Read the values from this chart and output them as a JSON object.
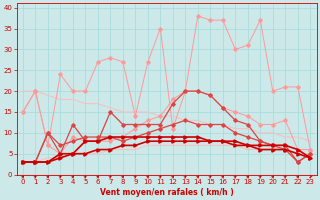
{
  "x": [
    0,
    1,
    2,
    3,
    4,
    5,
    6,
    7,
    8,
    9,
    10,
    11,
    12,
    13,
    14,
    15,
    16,
    17,
    18,
    19,
    20,
    21,
    22,
    23
  ],
  "line_dark1": [
    3,
    3,
    3,
    5,
    5,
    8,
    8,
    9,
    9,
    9,
    9,
    9,
    9,
    9,
    9,
    8,
    8,
    8,
    7,
    7,
    7,
    7,
    6,
    4
  ],
  "line_dark2": [
    3,
    3,
    3,
    4,
    5,
    5,
    6,
    6,
    7,
    7,
    8,
    8,
    8,
    8,
    8,
    8,
    8,
    7,
    7,
    6,
    6,
    6,
    5,
    4
  ],
  "line_med1": [
    3,
    3,
    10,
    5,
    12,
    8,
    8,
    15,
    12,
    12,
    12,
    12,
    17,
    20,
    20,
    19,
    16,
    13,
    12,
    8,
    7,
    6,
    3,
    5
  ],
  "line_med2": [
    3,
    3,
    10,
    7,
    8,
    9,
    9,
    9,
    8,
    9,
    10,
    11,
    12,
    13,
    12,
    12,
    12,
    10,
    9,
    8,
    7,
    7,
    3,
    5
  ],
  "line_light1": [
    15,
    20,
    7,
    24,
    20,
    20,
    27,
    28,
    27,
    14,
    27,
    35,
    11,
    20,
    38,
    37,
    37,
    30,
    31,
    37,
    20,
    21,
    21,
    6
  ],
  "line_light2": [
    15,
    20,
    7,
    5,
    9,
    8,
    8,
    8,
    9,
    11,
    13,
    14,
    18,
    20,
    20,
    19,
    16,
    15,
    14,
    12,
    12,
    13,
    6,
    6
  ],
  "line_trend_hi": [
    20,
    20,
    19,
    18,
    18,
    17,
    17,
    16,
    15,
    15,
    15,
    14,
    14,
    13,
    13,
    12,
    12,
    11,
    11,
    10,
    10,
    9,
    9,
    8
  ],
  "line_trend_lo": [
    3,
    3,
    4,
    4,
    5,
    5,
    5,
    6,
    6,
    6,
    7,
    7,
    7,
    7,
    7,
    7,
    7,
    7,
    6,
    6,
    6,
    6,
    5,
    5
  ],
  "bg_color": "#cce8e8",
  "grid_color": "#aadddd",
  "dark_red": "#cc0000",
  "medium_red": "#dd4444",
  "light_red": "#ff9999",
  "pale_red": "#ffbbbb",
  "xlabel": "Vent moyen/en rafales ( km/h )",
  "yticks": [
    0,
    5,
    10,
    15,
    20,
    25,
    30,
    35,
    40
  ],
  "xlim": [
    -0.5,
    23.5
  ],
  "ylim": [
    0,
    41
  ]
}
